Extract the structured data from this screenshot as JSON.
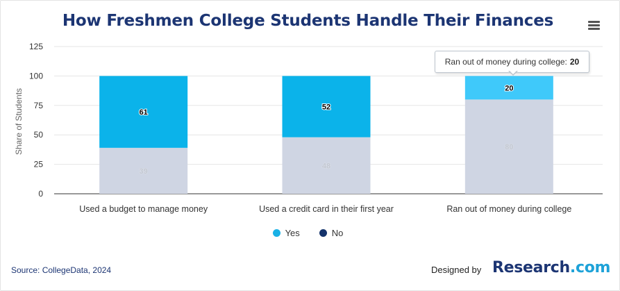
{
  "title": "How Freshmen College Students Handle Their Finances",
  "chart_data": {
    "type": "bar",
    "stacked": true,
    "categories": [
      "Used a budget to manage money",
      "Used a credit card in their first year",
      "Ran out of money during college"
    ],
    "series": [
      {
        "name": "Yes",
        "values": [
          61,
          52,
          20
        ],
        "color": "#0bb3ea"
      },
      {
        "name": "No",
        "values": [
          39,
          48,
          80
        ],
        "color": "#cfd5e3"
      }
    ],
    "ylabel": "Share of Students",
    "ylim": [
      0,
      125
    ],
    "yticks": [
      "0",
      "25",
      "50",
      "75",
      "100",
      "125"
    ],
    "grid": true,
    "legend_position": "bottom-center"
  },
  "tooltip": {
    "label": "Ran out of money during college:",
    "value": "20"
  },
  "legend": [
    {
      "label": "Yes",
      "color": "#1ab1e6"
    },
    {
      "label": "No",
      "color": "#14336b"
    }
  ],
  "footer": {
    "source": "Source: CollegeData, 2024",
    "designed_by": "Designed by",
    "brand_name": "Research",
    "brand_suffix": ".com"
  },
  "menu_icon": "hamburger-menu-icon",
  "highlight_color": "#3fc9fa"
}
